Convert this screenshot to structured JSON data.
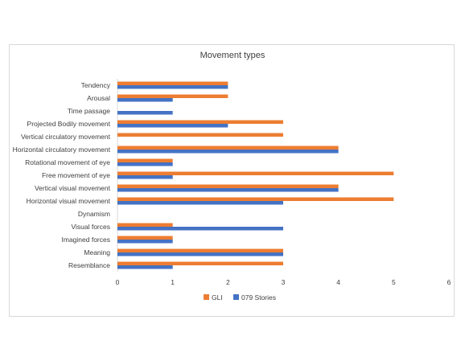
{
  "chart_data": {
    "type": "bar",
    "orientation": "horizontal",
    "title": "Movement types",
    "categories": [
      "Tendency",
      "Arousal",
      "Time passage",
      "Projected Bodily movement",
      "Vertical circulatory movement",
      "Horizontal circulatory movement",
      "Rotational movement of eye",
      "Free movement of eye",
      "Vertical visual movement",
      "Horizontal visual movement",
      "Dynamism",
      "Visual forces",
      "Imagined forces",
      "Meaning",
      "Resemblance"
    ],
    "series": [
      {
        "name": "GLI",
        "color": "#ED7D31",
        "values": [
          2,
          2,
          0,
          3,
          3,
          4,
          1,
          5,
          4,
          5,
          0,
          1,
          1,
          3,
          3
        ]
      },
      {
        "name": "079 Stories",
        "color": "#4472C4",
        "values": [
          2,
          1,
          1,
          2,
          0,
          4,
          1,
          1,
          4,
          3,
          0,
          3,
          1,
          3,
          1
        ]
      }
    ],
    "xlim": [
      0,
      6
    ],
    "xticks": [
      "0",
      "1",
      "2",
      "3",
      "4",
      "5",
      "6"
    ],
    "grid": false,
    "legend_position": "bottom"
  }
}
